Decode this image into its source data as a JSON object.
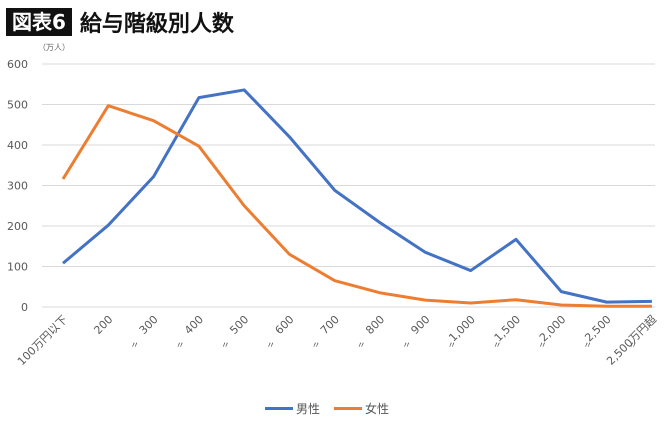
{
  "header": {
    "badge": "図表6",
    "title": "給与階級別人数"
  },
  "chart_data": {
    "type": "line",
    "title": "給与階級別人数",
    "ylabel": "（万人）",
    "xlabel": "",
    "ylim": [
      0,
      600
    ],
    "yticks": [
      0,
      100,
      200,
      300,
      400,
      500,
      600
    ],
    "grid": true,
    "legend_position": "bottom",
    "categories": [
      "100万円以下",
      "200 〃",
      "300 〃",
      "400 〃",
      "500 〃",
      "600 〃",
      "700 〃",
      "800 〃",
      "900 〃",
      "1,000 〃",
      "1,500 〃",
      "2,000 〃",
      "2,500 〃",
      "2,500万円超"
    ],
    "series": [
      {
        "name": "男性",
        "color": "#4472C4",
        "values": [
          108,
          202,
          322,
          517,
          536,
          420,
          288,
          208,
          135,
          90,
          167,
          38,
          12,
          14
        ]
      },
      {
        "name": "女性",
        "color": "#ED7D31",
        "values": [
          316,
          497,
          460,
          397,
          250,
          130,
          65,
          35,
          17,
          10,
          18,
          5,
          2,
          2
        ]
      }
    ]
  }
}
